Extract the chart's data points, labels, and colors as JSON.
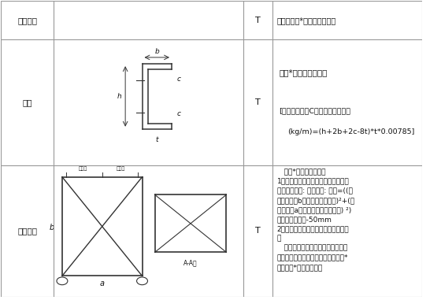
{
  "bg_color": "#ffffff",
  "line_color": "#999999",
  "draw_color": "#333333",
  "text_color": "#111111",
  "col_bounds": [
    0.0,
    0.125,
    0.575,
    0.645,
    1.0
  ],
  "row_bounds": [
    1.0,
    0.87,
    0.445,
    0.0
  ],
  "row1_label": "山墙角钢",
  "row2_label": "墙梁",
  "row3_label": "垂直支撑",
  "unit": "T",
  "row1_formula": "山墙面斜长*该规格理论重量",
  "row2_formula_line1": "长度*该规格理论重量",
  "row2_formula_note1": "[注：如墙梁为C型钢时其理论重量",
  "row2_formula_note2": "(kg/m)=(h+2b+2c-8t)*t*0.00785]",
  "row3_formula": "   斜长*该规格理论重量\n1、如果深化图还未出图，只能按施工\n图计算工程量: 如图所示: 斜长=((垂\n直支撑高度b－两端节点板距离)²+(两\n钢柱间距a－两端点节点板的距离) ²)\n的算数平方根）-50mm\n2、如果深化已出图，长度按深化图计\n算\n   该垂直支撑为阶梯形角钢支撑，连\n接两根角钢的角钢按两角钢之间距离*\n理论重量*梯段数量计算"
}
